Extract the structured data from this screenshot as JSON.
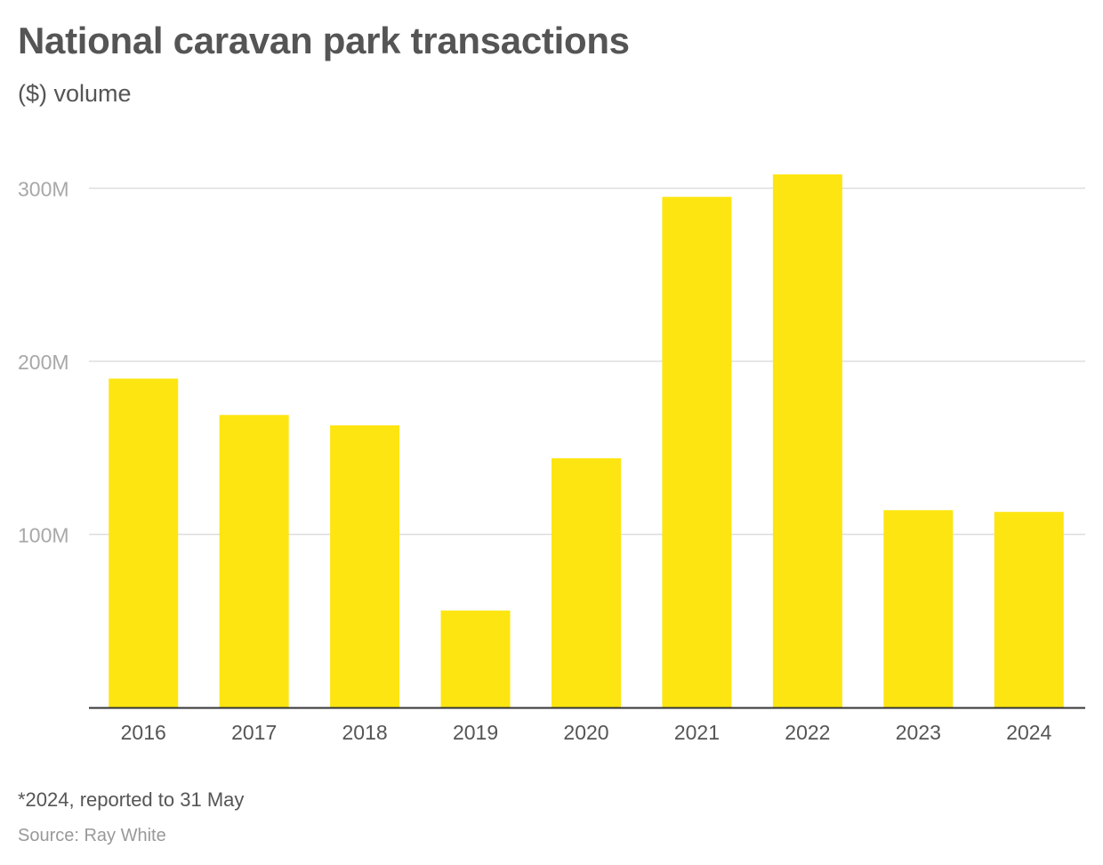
{
  "chart_data": {
    "type": "bar",
    "title": "National caravan park transactions",
    "subtitle": "($) volume",
    "categories": [
      "2016",
      "2017",
      "2018",
      "2019",
      "2020",
      "2021",
      "2022",
      "2023",
      "2024"
    ],
    "series": [
      {
        "values": [
          190,
          169,
          163,
          56,
          144,
          295,
          308,
          114,
          113
        ],
        "color": "#fde511"
      }
    ],
    "value_unit": "M",
    "ylim": [
      0,
      300
    ],
    "yticks": [
      100,
      200,
      300
    ],
    "ytick_labels": [
      "100M",
      "200M",
      "300M"
    ],
    "grid": true,
    "note": "*2024, reported to 31 May",
    "source": "Source: Ray White",
    "colors": {
      "bar": "#fde511",
      "grid": "#dddddd",
      "axis": "#333333"
    }
  }
}
